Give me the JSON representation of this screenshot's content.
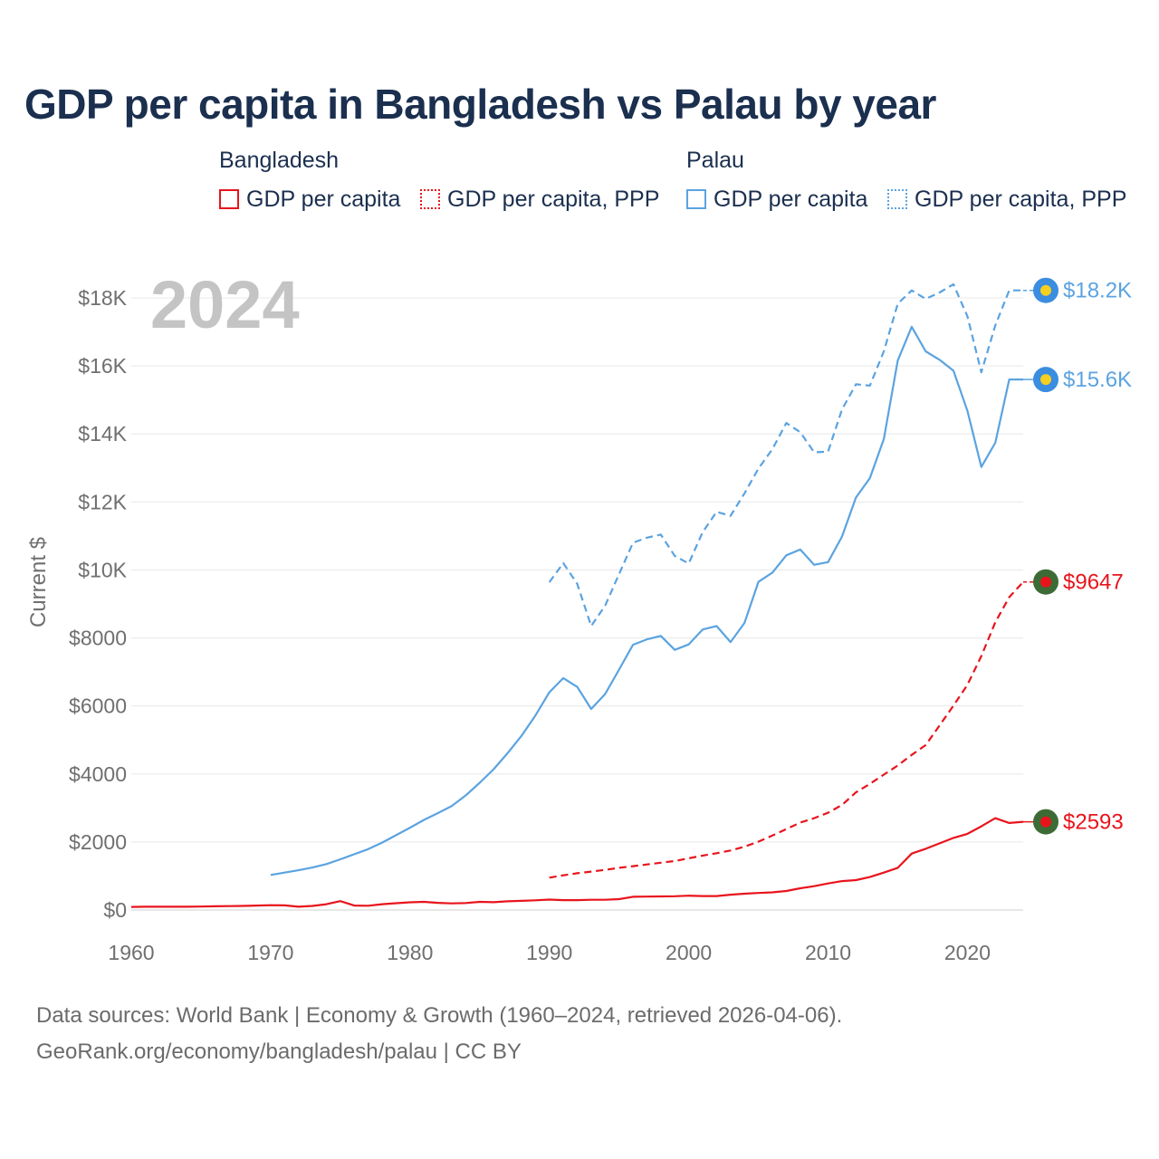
{
  "title": "GDP per capita in Bangladesh vs Palau by year",
  "legend": {
    "bangladesh_title": "Bangladesh",
    "palau_title": "Palau",
    "items": [
      {
        "label": "GDP per capita",
        "color": "#e8141c",
        "style": "solid"
      },
      {
        "label": "GDP per capita, PPP",
        "color": "#e8141c",
        "style": "dotted"
      },
      {
        "label": "GDP per capita",
        "color": "#5ba3e0",
        "style": "solid"
      },
      {
        "label": "GDP per capita, PPP",
        "color": "#5ba3e0",
        "style": "dotted"
      }
    ]
  },
  "year_watermark": "2024",
  "footer": {
    "line1": "Data sources: World Bank | Economy & Growth (1960–2024, retrieved 2026-04-06).",
    "line2": "GeoRank.org/economy/bangladesh/palau | CC BY"
  },
  "chart_data": {
    "type": "line",
    "title": "GDP per capita in Bangladesh vs Palau by year",
    "xlabel": "",
    "ylabel": "Current $",
    "xlim": [
      1960,
      2024
    ],
    "ylim": [
      0,
      18000
    ],
    "x_ticks": [
      1960,
      1970,
      1980,
      1990,
      2000,
      2010,
      2020
    ],
    "y_ticks": [
      0,
      2000,
      4000,
      6000,
      8000,
      10000,
      12000,
      14000,
      16000,
      18000
    ],
    "y_tick_labels": [
      "$0",
      "$2000",
      "$4000",
      "$6000",
      "$8000",
      "$10K",
      "$12K",
      "$14K",
      "$16K",
      "$18K"
    ],
    "grid": true,
    "series": [
      {
        "name": "Bangladesh GDP per capita",
        "color": "#e8141c",
        "dash": "solid",
        "end_label": "$2593",
        "x": [
          1960,
          1961,
          1962,
          1963,
          1964,
          1965,
          1966,
          1967,
          1968,
          1969,
          1970,
          1971,
          1972,
          1973,
          1974,
          1975,
          1976,
          1977,
          1978,
          1979,
          1980,
          1981,
          1982,
          1983,
          1984,
          1985,
          1986,
          1987,
          1988,
          1989,
          1990,
          1991,
          1992,
          1993,
          1994,
          1995,
          1996,
          1997,
          1998,
          1999,
          2000,
          2001,
          2002,
          2003,
          2004,
          2005,
          2006,
          2007,
          2008,
          2009,
          2010,
          2011,
          2012,
          2013,
          2014,
          2015,
          2016,
          2017,
          2018,
          2019,
          2020,
          2021,
          2022,
          2023,
          2024
        ],
        "y": [
          90,
          95,
          95,
          95,
          95,
          100,
          110,
          115,
          120,
          130,
          140,
          135,
          95,
          120,
          170,
          260,
          130,
          125,
          170,
          200,
          225,
          240,
          210,
          195,
          205,
          240,
          230,
          255,
          270,
          285,
          305,
          290,
          290,
          300,
          300,
          320,
          390,
          395,
          400,
          405,
          420,
          410,
          410,
          450,
          480,
          500,
          520,
          560,
          640,
          700,
          780,
          850,
          880,
          970,
          1100,
          1240,
          1660,
          1800,
          1960,
          2120,
          2240,
          2460,
          2700,
          2560,
          2593
        ]
      },
      {
        "name": "Bangladesh GDP per capita, PPP",
        "color": "#e8141c",
        "dash": "dashed",
        "end_label": "$9647",
        "x": [
          1990,
          1991,
          1992,
          1993,
          1994,
          1995,
          1996,
          1997,
          1998,
          1999,
          2000,
          2001,
          2002,
          2003,
          2004,
          2005,
          2006,
          2007,
          2008,
          2009,
          2010,
          2011,
          2012,
          2013,
          2014,
          2015,
          2016,
          2017,
          2018,
          2019,
          2020,
          2021,
          2022,
          2023,
          2024
        ],
        "y": [
          950,
          1020,
          1080,
          1130,
          1180,
          1240,
          1290,
          1340,
          1390,
          1440,
          1520,
          1600,
          1670,
          1750,
          1860,
          2010,
          2190,
          2380,
          2570,
          2700,
          2860,
          3090,
          3460,
          3710,
          3980,
          4250,
          4560,
          4850,
          5430,
          6010,
          6620,
          7470,
          8460,
          9200,
          9647
        ]
      },
      {
        "name": "Palau GDP per capita",
        "color": "#5ba3e0",
        "dash": "solid",
        "end_label": "$15.6K",
        "x": [
          1970,
          1971,
          1972,
          1973,
          1974,
          1975,
          1976,
          1977,
          1978,
          1979,
          1980,
          1981,
          1982,
          1983,
          1984,
          1985,
          1986,
          1987,
          1988,
          1989,
          1990,
          1991,
          1992,
          1993,
          1994,
          1995,
          1996,
          1997,
          1998,
          1999,
          2000,
          2001,
          2002,
          2003,
          2004,
          2005,
          2006,
          2007,
          2008,
          2009,
          2010,
          2011,
          2012,
          2013,
          2014,
          2015,
          2016,
          2017,
          2018,
          2019,
          2020,
          2021,
          2022,
          2023,
          2024
        ],
        "y": [
          1030,
          1100,
          1170,
          1250,
          1350,
          1490,
          1640,
          1790,
          1980,
          2200,
          2420,
          2650,
          2850,
          3060,
          3370,
          3740,
          4140,
          4610,
          5120,
          5720,
          6400,
          6820,
          6560,
          5910,
          6350,
          7070,
          7800,
          7960,
          8060,
          7650,
          7810,
          8250,
          8350,
          7880,
          8440,
          9650,
          9920,
          10430,
          10600,
          10150,
          10230,
          10980,
          12130,
          12700,
          13850,
          16160,
          17150,
          16430,
          16180,
          15860,
          14680,
          13030,
          13740,
          15600,
          15600
        ]
      },
      {
        "name": "Palau GDP per capita, PPP",
        "color": "#5ba3e0",
        "dash": "dashed",
        "end_label": "$18.2K",
        "x": [
          1990,
          1991,
          1992,
          1993,
          1994,
          1995,
          1996,
          1997,
          1998,
          1999,
          2000,
          2001,
          2002,
          2003,
          2004,
          2005,
          2006,
          2007,
          2008,
          2009,
          2010,
          2011,
          2012,
          2013,
          2014,
          2015,
          2016,
          2017,
          2018,
          2019,
          2020,
          2021,
          2022,
          2023,
          2024
        ],
        "y": [
          9640,
          10200,
          9590,
          8350,
          8950,
          9880,
          10800,
          10950,
          11040,
          10410,
          10190,
          11110,
          11710,
          11590,
          12250,
          12980,
          13550,
          14320,
          14050,
          13460,
          13480,
          14720,
          15460,
          15420,
          16430,
          17830,
          18220,
          17970,
          18160,
          18400,
          17460,
          15810,
          17190,
          18220,
          18220
        ]
      }
    ]
  }
}
